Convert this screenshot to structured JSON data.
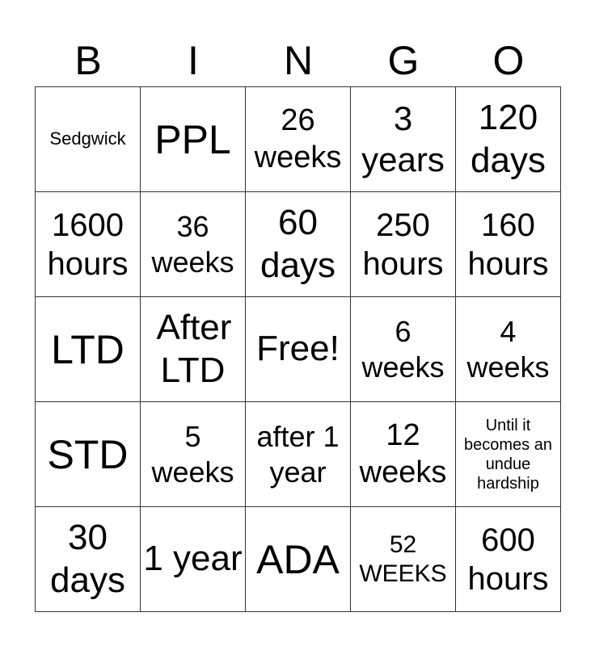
{
  "header": [
    "B",
    "I",
    "N",
    "G",
    "O"
  ],
  "cells": [
    [
      "Sedgwick",
      "PPL",
      "26 weeks",
      "3 years",
      "120 days"
    ],
    [
      "1600 hours",
      "36 weeks",
      "60 days",
      "250 hours",
      "160 hours"
    ],
    [
      "LTD",
      "After LTD",
      "Free!",
      "6 weeks",
      "4 weeks"
    ],
    [
      "STD",
      "5 weeks",
      "after 1 year",
      "12 weeks",
      "Until it becomes an undue hardship"
    ],
    [
      "30 days",
      "1 year",
      "ADA",
      "52 WEEKS",
      "600 hours"
    ]
  ]
}
